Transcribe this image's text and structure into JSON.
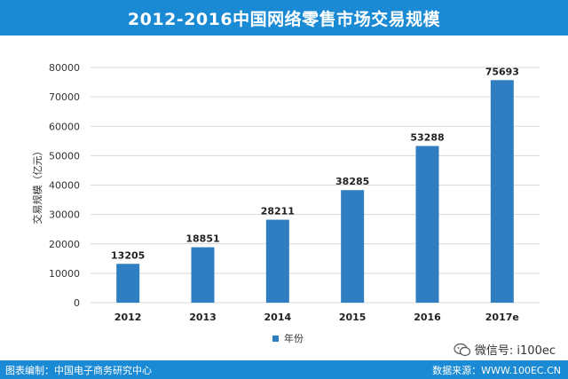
{
  "header": {
    "title": "2012-2016中国网络零售市场交易规模"
  },
  "footer": {
    "left": "图表编制：中国电子商务研究中心",
    "right": "数据来源：WWW.100EC.CN"
  },
  "watermark": {
    "text": "微信号: i100ec",
    "icon": "wechat-icon"
  },
  "colors": {
    "accent": "#1a8ad4",
    "bar": "#2f7ec1",
    "grid": "#d9d9d9"
  },
  "chart_data": {
    "type": "bar",
    "title": "2012-2016中国网络零售市场交易规模",
    "categories": [
      "2012",
      "2013",
      "2014",
      "2015",
      "2016",
      "2017e"
    ],
    "series": [
      {
        "name": "年份",
        "values": [
          13205,
          18851,
          28211,
          38285,
          53288,
          75693
        ]
      }
    ],
    "data_labels": [
      "13205",
      "18851",
      "28211",
      "38285",
      "53288",
      "75693"
    ],
    "ylabel": "交易规模（亿元）",
    "xlabel": "",
    "ylim": [
      0,
      80000
    ],
    "yticks": [
      0,
      10000,
      20000,
      30000,
      40000,
      50000,
      60000,
      70000,
      80000
    ],
    "grid": true,
    "legend_position": "bottom"
  }
}
